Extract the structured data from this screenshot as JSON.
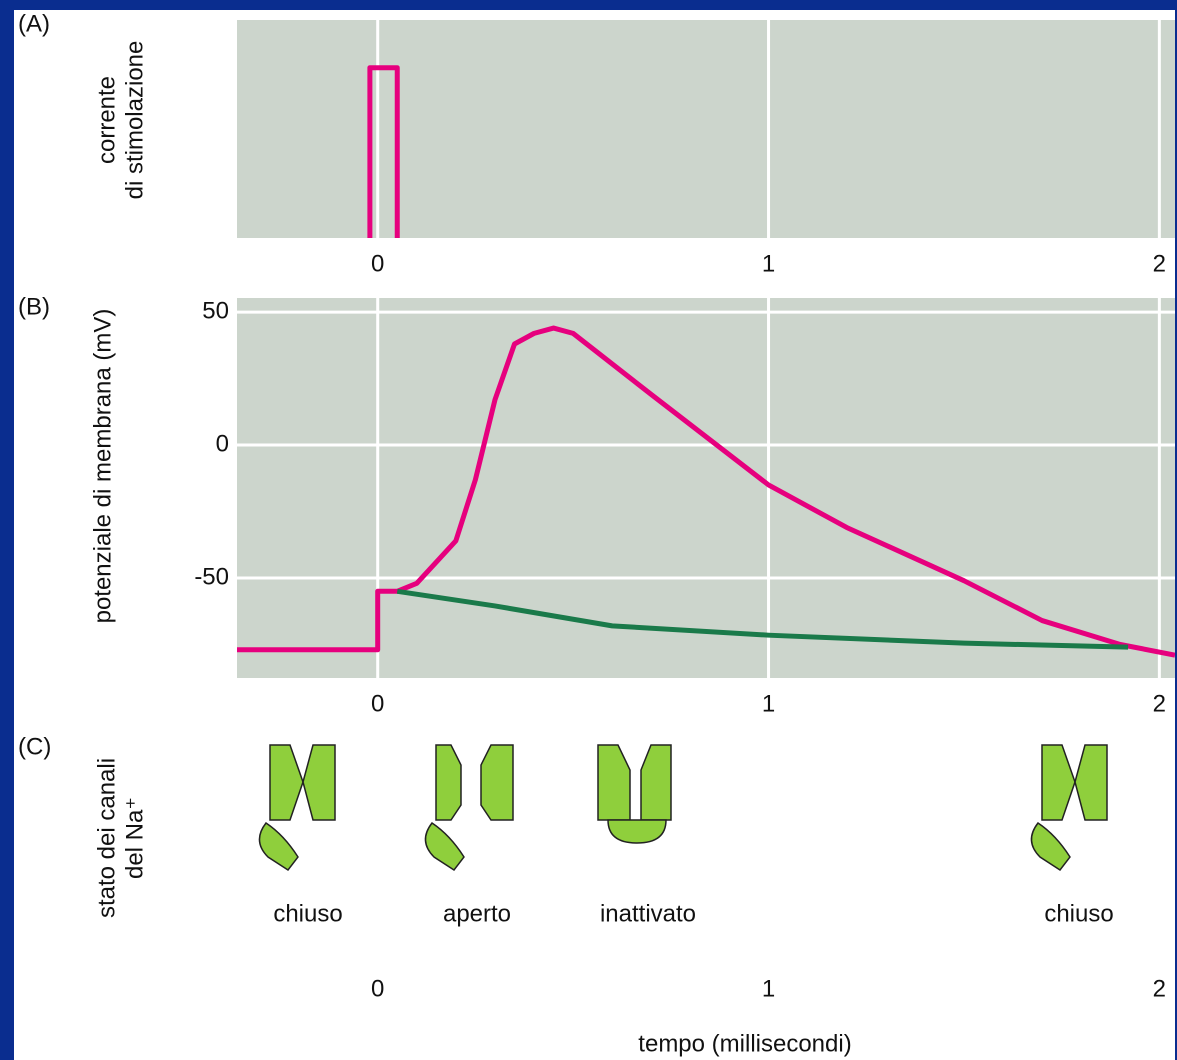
{
  "chart_data": [
    {
      "type": "line",
      "panel": "(A)",
      "ylabel": [
        "corrente",
        "di stimolazione"
      ],
      "xlim": [
        -0.36,
        2.04
      ],
      "xticks": [
        0,
        1,
        2
      ],
      "ylim": [
        0,
        1.28
      ],
      "grid": true,
      "series": [
        {
          "color": "#e6007e",
          "x": [
            -0.02,
            -0.02,
            0.05,
            0.05
          ],
          "values": [
            0,
            1,
            1,
            0
          ]
        }
      ]
    },
    {
      "type": "line",
      "panel": "(B)",
      "ylabel": [
        "potenziale di membrana (mV)"
      ],
      "xlim": [
        -0.36,
        2.04
      ],
      "xticks": [
        0,
        1,
        2
      ],
      "ylim": [
        -87.6,
        55.3
      ],
      "yticks": [
        50,
        0,
        -50
      ],
      "grid": true,
      "series": [
        {
          "color": "#e6007e",
          "x": [
            -0.36,
            0,
            0,
            0.05,
            0.1,
            0.2,
            0.25,
            0.3,
            0.35,
            0.4,
            0.45,
            0.5,
            0.7,
            1.0,
            1.2,
            1.5,
            1.7,
            1.9,
            2.04
          ],
          "values": [
            -77,
            -77,
            -55,
            -55,
            -52,
            -36,
            -13,
            17,
            38,
            42,
            44,
            42,
            19,
            -15,
            -31,
            -51,
            -66,
            -75,
            -79
          ]
        },
        {
          "color": "#1a7a4a",
          "x": [
            0.05,
            0.3,
            0.6,
            1.0,
            1.5,
            1.92
          ],
          "values": [
            -55,
            -60.5,
            -68,
            -71.5,
            -74.5,
            -76
          ]
        }
      ]
    }
  ],
  "panel_c": {
    "panel": "(C)",
    "ylabel": [
      "stato dei canali",
      "del Na⁺"
    ],
    "states": [
      "chiuso",
      "aperto",
      "inattivato",
      "chiuso"
    ],
    "xticks": [
      0,
      1,
      2
    ],
    "xlabel": "tempo (millisecondi)"
  }
}
